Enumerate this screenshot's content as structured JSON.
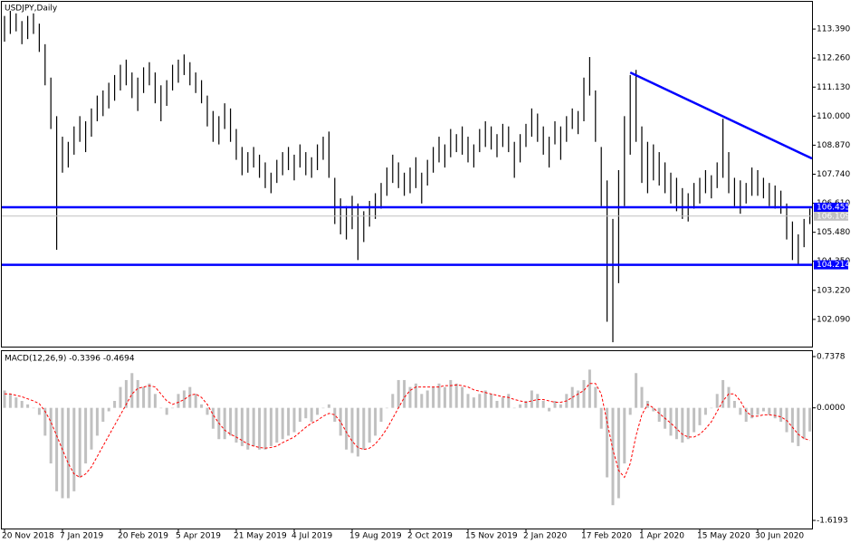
{
  "chart_data": [
    {
      "type": "ohlc",
      "title": "USDJPY,Daily",
      "color": "#000000",
      "high": [
        113.9,
        114.1,
        114.0,
        113.7,
        113.9,
        114.0,
        113.6,
        112.8,
        111.5,
        110.0,
        109.2,
        109.0,
        109.6,
        110.0,
        109.8,
        110.3,
        110.8,
        111.0,
        111.3,
        111.6,
        112.0,
        112.2,
        111.7,
        111.5,
        111.9,
        112.1,
        111.7,
        111.2,
        111.4,
        112.0,
        112.2,
        112.4,
        112.1,
        111.7,
        111.4,
        110.8,
        110.2,
        110.0,
        110.5,
        110.3,
        109.5,
        108.8,
        108.6,
        108.8,
        108.5,
        108.2,
        107.8,
        108.3,
        108.6,
        108.8,
        108.5,
        108.9,
        108.6,
        108.4,
        108.9,
        109.2,
        109.4,
        107.6,
        106.8,
        106.5,
        106.9,
        106.6,
        106.3,
        106.7,
        107.0,
        107.4,
        108.0,
        108.5,
        108.2,
        107.8,
        108.0,
        108.4,
        107.8,
        108.3,
        108.8,
        109.2,
        108.9,
        109.5,
        109.3,
        109.6,
        109.2,
        108.9,
        109.5,
        109.8,
        109.6,
        109.3,
        109.7,
        109.6,
        109.0,
        109.3,
        109.7,
        110.3,
        110.1,
        109.6,
        109.2,
        109.8,
        109.6,
        110.0,
        110.3,
        110.2,
        111.5,
        112.3,
        111.0,
        108.8,
        107.5,
        106.0,
        107.9,
        110.0,
        111.6,
        111.8,
        109.6,
        109.0,
        108.9,
        108.6,
        108.2,
        107.8,
        107.6,
        107.2,
        107.0,
        107.4,
        107.6,
        107.9,
        107.7,
        108.2,
        109.9,
        108.6,
        107.6,
        107.5,
        107.4,
        108.0,
        107.9,
        107.6,
        107.4,
        107.3,
        107.1,
        106.6,
        105.9,
        105.4,
        106.0,
        106.4
      ],
      "low": [
        112.9,
        113.2,
        113.3,
        112.8,
        113.0,
        113.2,
        112.5,
        111.2,
        109.5,
        104.8,
        107.8,
        108.0,
        108.5,
        109.0,
        108.6,
        109.2,
        109.8,
        110.0,
        110.3,
        110.6,
        111.0,
        111.2,
        110.7,
        110.2,
        110.9,
        111.2,
        110.5,
        109.8,
        110.4,
        111.0,
        111.3,
        111.6,
        111.2,
        110.9,
        110.5,
        109.6,
        109.0,
        108.9,
        109.5,
        109.0,
        108.3,
        107.7,
        107.8,
        108.0,
        107.6,
        107.2,
        107.0,
        107.4,
        107.7,
        107.9,
        107.5,
        108.0,
        107.7,
        107.6,
        107.9,
        108.3,
        107.6,
        105.8,
        105.4,
        105.2,
        105.6,
        104.4,
        105.1,
        105.7,
        106.0,
        106.4,
        106.9,
        107.4,
        107.2,
        106.9,
        107.0,
        107.2,
        106.6,
        107.3,
        107.8,
        108.2,
        108.0,
        108.4,
        108.6,
        108.5,
        108.2,
        108.0,
        108.6,
        108.8,
        108.7,
        108.4,
        108.8,
        108.6,
        107.6,
        108.2,
        108.8,
        109.2,
        109.0,
        108.5,
        108.0,
        108.9,
        108.3,
        109.0,
        109.5,
        109.3,
        109.8,
        110.8,
        109.0,
        106.5,
        102.0,
        101.2,
        103.5,
        106.5,
        108.5,
        109.0,
        107.4,
        107.0,
        107.5,
        107.3,
        107.0,
        106.6,
        106.3,
        106.0,
        105.9,
        106.4,
        106.6,
        107.0,
        106.8,
        107.2,
        107.6,
        107.0,
        106.5,
        106.2,
        106.6,
        106.9,
        106.9,
        106.8,
        106.5,
        106.4,
        106.2,
        105.2,
        104.4,
        104.2,
        104.9,
        105.8
      ],
      "ylim": [
        101.03,
        114.45
      ],
      "yticks": [
        {
          "value": 113.39,
          "label": "113.390"
        },
        {
          "value": 112.26,
          "label": "112.260"
        },
        {
          "value": 111.13,
          "label": "111.130"
        },
        {
          "value": 110.0,
          "label": "110.000"
        },
        {
          "value": 108.87,
          "label": "108.870"
        },
        {
          "value": 107.74,
          "label": "107.740"
        },
        {
          "value": 106.61,
          "label": "106.610"
        },
        {
          "value": 105.48,
          "label": "105.480"
        },
        {
          "value": 104.35,
          "label": "104.350"
        },
        {
          "value": 103.22,
          "label": "103.220"
        },
        {
          "value": 102.09,
          "label": "102.090"
        }
      ],
      "levels": [
        106.455,
        104.214
      ],
      "level_color": "#0000ff",
      "last_price": 106.109,
      "last_color": "#c0c0c0",
      "trendline": {
        "x": [
          108,
          140
        ],
        "y": [
          111.7,
          108.35
        ]
      }
    },
    {
      "type": "macd",
      "title": "MACD(12,26,9) -0.3396 -0.4694",
      "histogram_color": "#c0c0c0",
      "signal_color": "#ff0000",
      "histogram": [
        0.25,
        0.2,
        0.15,
        0.1,
        0.05,
        0.0,
        -0.1,
        -0.4,
        -0.8,
        -1.2,
        -1.3,
        -1.3,
        -1.2,
        -1.0,
        -0.8,
        -0.6,
        -0.4,
        -0.2,
        -0.05,
        0.1,
        0.3,
        0.4,
        0.5,
        0.4,
        0.3,
        0.35,
        0.2,
        0.0,
        -0.1,
        0.0,
        0.2,
        0.25,
        0.3,
        0.2,
        0.05,
        -0.1,
        -0.3,
        -0.45,
        -0.45,
        -0.4,
        -0.5,
        -0.55,
        -0.6,
        -0.55,
        -0.6,
        -0.6,
        -0.55,
        -0.5,
        -0.45,
        -0.4,
        -0.35,
        -0.2,
        -0.15,
        -0.2,
        -0.1,
        0.0,
        0.05,
        -0.2,
        -0.4,
        -0.6,
        -0.65,
        -0.7,
        -0.6,
        -0.5,
        -0.4,
        -0.2,
        0.0,
        0.2,
        0.4,
        0.4,
        0.3,
        0.35,
        0.2,
        0.25,
        0.3,
        0.35,
        0.3,
        0.4,
        0.35,
        0.3,
        0.2,
        0.15,
        0.2,
        0.25,
        0.2,
        0.1,
        0.15,
        0.2,
        0.0,
        0.05,
        0.1,
        0.25,
        0.2,
        0.1,
        -0.05,
        0.1,
        0.05,
        0.2,
        0.3,
        0.25,
        0.4,
        0.55,
        0.3,
        -0.3,
        -1.0,
        -1.4,
        -1.3,
        -0.8,
        -0.1,
        0.5,
        0.3,
        0.1,
        -0.05,
        -0.2,
        -0.3,
        -0.4,
        -0.45,
        -0.5,
        -0.45,
        -0.35,
        -0.25,
        -0.1,
        0.0,
        0.2,
        0.4,
        0.3,
        0.1,
        -0.1,
        -0.2,
        -0.15,
        -0.1,
        -0.05,
        -0.1,
        -0.15,
        -0.2,
        -0.35,
        -0.5,
        -0.55,
        -0.45,
        -0.3396
      ],
      "signal": [
        0.2,
        0.2,
        0.18,
        0.16,
        0.13,
        0.1,
        0.06,
        -0.05,
        -0.2,
        -0.4,
        -0.6,
        -0.8,
        -0.95,
        -1.0,
        -0.95,
        -0.85,
        -0.7,
        -0.55,
        -0.4,
        -0.25,
        -0.1,
        0.05,
        0.2,
        0.28,
        0.3,
        0.32,
        0.3,
        0.2,
        0.1,
        0.05,
        0.08,
        0.12,
        0.18,
        0.2,
        0.15,
        0.05,
        -0.1,
        -0.22,
        -0.32,
        -0.38,
        -0.42,
        -0.47,
        -0.52,
        -0.55,
        -0.57,
        -0.58,
        -0.57,
        -0.55,
        -0.5,
        -0.46,
        -0.42,
        -0.35,
        -0.28,
        -0.22,
        -0.18,
        -0.12,
        -0.08,
        -0.1,
        -0.2,
        -0.35,
        -0.48,
        -0.57,
        -0.6,
        -0.58,
        -0.52,
        -0.42,
        -0.3,
        -0.15,
        0.0,
        0.15,
        0.25,
        0.3,
        0.3,
        0.3,
        0.3,
        0.3,
        0.32,
        0.32,
        0.33,
        0.32,
        0.3,
        0.26,
        0.24,
        0.22,
        0.2,
        0.18,
        0.16,
        0.15,
        0.12,
        0.1,
        0.08,
        0.1,
        0.12,
        0.12,
        0.1,
        0.08,
        0.08,
        0.1,
        0.15,
        0.2,
        0.25,
        0.35,
        0.35,
        0.2,
        -0.2,
        -0.6,
        -0.9,
        -1.0,
        -0.8,
        -0.4,
        -0.1,
        0.05,
        0.0,
        -0.08,
        -0.15,
        -0.22,
        -0.3,
        -0.38,
        -0.42,
        -0.42,
        -0.38,
        -0.3,
        -0.2,
        -0.05,
        0.1,
        0.2,
        0.2,
        0.1,
        -0.05,
        -0.12,
        -0.12,
        -0.1,
        -0.1,
        -0.11,
        -0.13,
        -0.18,
        -0.28,
        -0.38,
        -0.44,
        -0.4694
      ],
      "ylim": [
        -1.736,
        0.816
      ],
      "yticks": [
        0.7378,
        {
          "value": 0,
          "label": "0.0000"
        },
        -1.6193
      ],
      "categories": [
        "20 Nov 2018",
        null,
        null,
        null,
        null,
        null,
        null,
        null,
        null,
        null,
        "7 Jan 2019",
        null,
        null,
        null,
        null,
        null,
        null,
        null,
        null,
        null,
        "20 Feb 2019",
        null,
        null,
        null,
        null,
        null,
        null,
        null,
        null,
        null,
        "5 Apr 2019",
        null,
        null,
        null,
        null,
        null,
        null,
        null,
        null,
        null,
        "21 May 2019",
        null,
        null,
        null,
        null,
        null,
        null,
        null,
        null,
        null,
        "4 Jul 2019",
        null,
        null,
        null,
        null,
        null,
        null,
        null,
        null,
        null,
        "19 Aug 2019",
        null,
        null,
        null,
        null,
        null,
        null,
        null,
        null,
        null,
        "2 Oct 2019",
        null,
        null,
        null,
        null,
        null,
        null,
        null,
        null,
        null,
        "15 Nov 2019",
        null,
        null,
        null,
        null,
        null,
        null,
        null,
        null,
        null,
        "2 Jan 2020",
        null,
        null,
        null,
        null,
        null,
        null,
        null,
        null,
        null,
        "17 Feb 2020",
        null,
        null,
        null,
        null,
        null,
        null,
        null,
        null,
        null,
        "1 Apr 2020",
        null,
        null,
        null,
        null,
        null,
        null,
        null,
        null,
        null,
        "15 May 2020",
        null,
        null,
        null,
        null,
        null,
        null,
        null,
        null,
        null,
        "30 Jun 2020",
        null,
        null,
        null,
        null,
        null,
        null,
        null,
        null,
        null
      ]
    }
  ]
}
